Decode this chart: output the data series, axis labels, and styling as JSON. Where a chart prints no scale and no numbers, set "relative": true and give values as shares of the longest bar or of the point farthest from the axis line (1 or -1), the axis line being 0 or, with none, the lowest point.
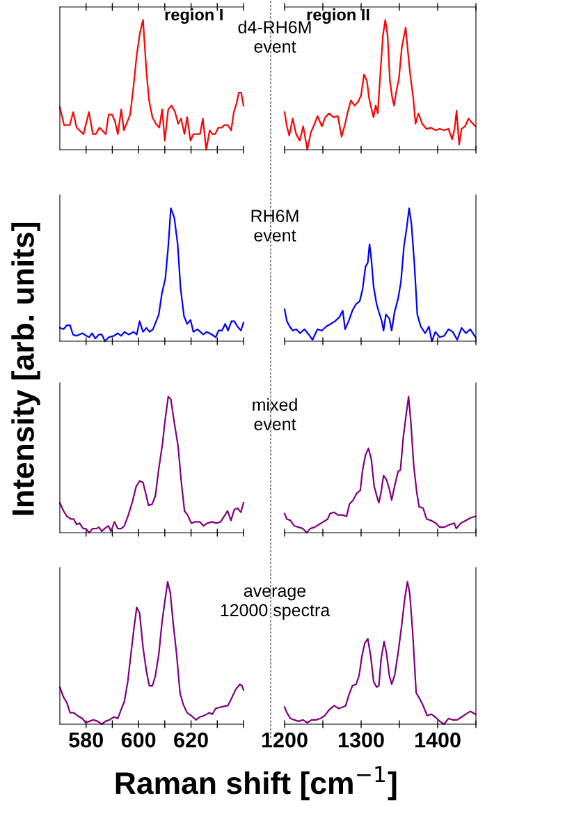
{
  "chart_data": [
    {
      "type": "line",
      "title": "region I",
      "ylabel": "Intensity [arb. units]",
      "annotations": [
        "d4-RH6M\nevent"
      ],
      "relative": true,
      "tick_labels": false,
      "xlim": [
        570,
        640
      ],
      "xticks": [
        {
          "value": 580,
          "label": null
        },
        {
          "value": 590,
          "label": null
        },
        {
          "value": 600,
          "label": null
        },
        {
          "value": 610,
          "label": null
        },
        {
          "value": 620,
          "label": null
        },
        {
          "value": 630,
          "label": null
        },
        {
          "value": 640,
          "label": null
        }
      ],
      "series": [
        {
          "color": "#ff0000",
          "x": [
            570,
            571.6,
            573.8,
            575.1,
            576.4,
            579,
            581.1,
            582.6,
            583.7,
            585.1,
            587.5,
            588.6,
            589.9,
            591,
            592.1,
            593.4,
            594.4,
            596.8,
            598.1,
            599.3,
            600.6,
            601.7,
            603,
            604,
            605.3,
            606.6,
            607.9,
            609,
            610,
            611.3,
            612.6,
            613.9,
            615.1,
            616.2,
            617.5,
            618.5,
            619.8,
            620.9,
            623.4,
            624.5,
            625.8,
            627.1,
            628.1,
            629.2,
            630.4,
            631.7,
            632.7,
            634,
            635.3,
            636.3,
            637.4,
            638.2,
            639.1,
            640
          ],
          "values": [
            0.33,
            0.19,
            0.19,
            0.29,
            0.17,
            0.12,
            0.29,
            0.12,
            0.12,
            0.17,
            0.12,
            0.27,
            0.27,
            0.22,
            0.12,
            0.31,
            0.15,
            0.27,
            0.49,
            0.73,
            0.91,
            1.0,
            0.6,
            0.38,
            0.25,
            0.2,
            0.17,
            0.31,
            0.07,
            0.31,
            0.34,
            0.29,
            0.2,
            0.24,
            0.12,
            0.25,
            0.07,
            0.12,
            0.12,
            0.24,
            0.0,
            0.15,
            0.12,
            0.12,
            0.17,
            0.17,
            0.19,
            0.19,
            0.15,
            0.29,
            0.36,
            0.44,
            0.44,
            0.34
          ]
        }
      ]
    },
    {
      "type": "line",
      "title": "region II",
      "relative": true,
      "tick_labels": false,
      "xlim": [
        1200,
        1450
      ],
      "xticks": [
        {
          "value": 1200,
          "label": null
        },
        {
          "value": 1250,
          "label": null
        },
        {
          "value": 1300,
          "label": null
        },
        {
          "value": 1350,
          "label": null
        },
        {
          "value": 1400,
          "label": null
        },
        {
          "value": 1450,
          "label": null
        }
      ],
      "series": [
        {
          "color": "#ff0000",
          "x": [
            1200,
            1203,
            1206.1,
            1210.6,
            1215.2,
            1219.8,
            1224.3,
            1229.7,
            1234.2,
            1239.2,
            1243,
            1248.7,
            1253.2,
            1258.2,
            1263.9,
            1269.6,
            1274.5,
            1279.1,
            1282.9,
            1286.7,
            1291.3,
            1296.2,
            1300,
            1303.8,
            1307.6,
            1310.3,
            1313.3,
            1316.3,
            1319,
            1321.7,
            1324.7,
            1328.5,
            1331.6,
            1334.6,
            1337.6,
            1340.7,
            1343,
            1346,
            1349.4,
            1353.2,
            1358.2,
            1361.2,
            1364.3,
            1368.1,
            1371.1,
            1374.9,
            1379.8,
            1385.6,
            1391.3,
            1397,
            1402.7,
            1408.4,
            1414.1,
            1419,
            1422.1,
            1424.7,
            1428.1,
            1431.2,
            1435.7,
            1440.3,
            1444.5,
            1449.4
          ],
          "values": [
            0.29,
            0.18,
            0.11,
            0.24,
            0.12,
            0.07,
            0.18,
            0.0,
            0.13,
            0.2,
            0.26,
            0.18,
            0.25,
            0.28,
            0.25,
            0.26,
            0.1,
            0.2,
            0.3,
            0.38,
            0.34,
            0.37,
            0.42,
            0.58,
            0.53,
            0.4,
            0.32,
            0.25,
            0.34,
            0.28,
            0.55,
            0.88,
            1.0,
            0.88,
            0.53,
            0.4,
            0.34,
            0.45,
            0.55,
            0.79,
            0.94,
            0.75,
            0.57,
            0.4,
            0.2,
            0.28,
            0.2,
            0.16,
            0.17,
            0.15,
            0.16,
            0.15,
            0.16,
            0.08,
            0.16,
            0.3,
            0.04,
            0.16,
            0.18,
            0.24,
            0.21,
            0.18
          ]
        }
      ]
    },
    {
      "type": "line",
      "annotations": [
        "RH6M\nevent"
      ],
      "relative": true,
      "tick_labels": false,
      "xlim": [
        570,
        640
      ],
      "xticks": [
        {
          "value": 580,
          "label": null
        },
        {
          "value": 590,
          "label": null
        },
        {
          "value": 600,
          "label": null
        },
        {
          "value": 610,
          "label": null
        },
        {
          "value": 620,
          "label": null
        },
        {
          "value": 630,
          "label": null
        },
        {
          "value": 640,
          "label": null
        }
      ],
      "series": [
        {
          "color": "#0000ff",
          "x": [
            570,
            571.4,
            572.7,
            573.9,
            575,
            576.4,
            578.6,
            580.1,
            581.2,
            582.3,
            583.5,
            584.9,
            586,
            587.2,
            588.7,
            590.6,
            592.1,
            593.4,
            594.6,
            596.3,
            598.1,
            599.3,
            600.4,
            601.7,
            603,
            604.2,
            605.5,
            607.7,
            608.9,
            610.2,
            611.3,
            612.3,
            613.6,
            614.9,
            616,
            617.3,
            618.5,
            619.8,
            620.9,
            622.4,
            624.7,
            626,
            627.1,
            629.4,
            630.5,
            631.8,
            633,
            634.1,
            635.4,
            636.5,
            637.7,
            639,
            640
          ],
          "values": [
            0.1,
            0.09,
            0.12,
            0.12,
            0.05,
            0.04,
            0.06,
            0.04,
            0.03,
            0.06,
            0.02,
            0.05,
            0.05,
            0.0,
            0.03,
            0.04,
            0.06,
            0.04,
            0.07,
            0.05,
            0.07,
            0.05,
            0.15,
            0.07,
            0.1,
            0.07,
            0.09,
            0.2,
            0.36,
            0.47,
            0.71,
            1.0,
            0.93,
            0.73,
            0.4,
            0.19,
            0.13,
            0.16,
            0.07,
            0.09,
            0.05,
            0.07,
            0.06,
            0.03,
            0.08,
            0.08,
            0.13,
            0.08,
            0.15,
            0.15,
            0.11,
            0.08,
            0.14
          ]
        }
      ]
    },
    {
      "type": "line",
      "relative": true,
      "tick_labels": false,
      "xlim": [
        1200,
        1450
      ],
      "xticks": [
        {
          "value": 1200,
          "label": null
        },
        {
          "value": 1250,
          "label": null
        },
        {
          "value": 1300,
          "label": null
        },
        {
          "value": 1350,
          "label": null
        },
        {
          "value": 1400,
          "label": null
        },
        {
          "value": 1450,
          "label": null
        }
      ],
      "series": [
        {
          "color": "#0000ff",
          "x": [
            1200,
            1203,
            1206.8,
            1210.6,
            1215.2,
            1220.2,
            1225.9,
            1231.6,
            1236.5,
            1243,
            1248.7,
            1254.4,
            1260.1,
            1265.8,
            1271.5,
            1276,
            1279.1,
            1283.7,
            1288.6,
            1293.5,
            1298.1,
            1301.9,
            1305.7,
            1308.7,
            1311,
            1313.3,
            1316.3,
            1320.2,
            1323.2,
            1327,
            1329.3,
            1332.3,
            1336.9,
            1339.9,
            1343.7,
            1348.3,
            1352.1,
            1355.9,
            1359.7,
            1362.7,
            1365.8,
            1369.6,
            1373.4,
            1378,
            1383.7,
            1388.6,
            1392.4,
            1397,
            1402.7,
            1408.4,
            1414.1,
            1419.8,
            1425.5,
            1431.2,
            1436.9,
            1442.6,
            1449.4
          ],
          "values": [
            0.24,
            0.15,
            0.11,
            0.08,
            0.09,
            0.06,
            0.09,
            0.05,
            0.01,
            0.09,
            0.08,
            0.11,
            0.13,
            0.15,
            0.18,
            0.23,
            0.09,
            0.15,
            0.23,
            0.28,
            0.3,
            0.39,
            0.56,
            0.59,
            0.73,
            0.62,
            0.41,
            0.28,
            0.22,
            0.15,
            0.08,
            0.2,
            0.17,
            0.08,
            0.22,
            0.32,
            0.45,
            0.71,
            0.86,
            1.0,
            0.88,
            0.58,
            0.2,
            0.11,
            0.06,
            0.11,
            0.0,
            0.07,
            0.03,
            0.04,
            0.09,
            0.07,
            0.01,
            0.1,
            0.06,
            0.09,
            0.03
          ]
        }
      ]
    },
    {
      "type": "line",
      "annotations": [
        "mixed\nevent"
      ],
      "relative": true,
      "tick_labels": false,
      "xlim": [
        570,
        640
      ],
      "xticks": [
        {
          "value": 580,
          "label": null
        },
        {
          "value": 590,
          "label": null
        },
        {
          "value": 600,
          "label": null
        },
        {
          "value": 610,
          "label": null
        },
        {
          "value": 620,
          "label": null
        },
        {
          "value": 630,
          "label": null
        },
        {
          "value": 640,
          "label": null
        }
      ],
      "series": [
        {
          "color": "#800080",
          "x": [
            570,
            571.4,
            572.7,
            574.3,
            575.3,
            576.4,
            577.5,
            578.9,
            579.9,
            581.2,
            582.5,
            583.9,
            584.9,
            586,
            587.1,
            588.5,
            589.5,
            590.8,
            592.1,
            593.4,
            594.6,
            596.1,
            597.7,
            599.1,
            600.4,
            601.7,
            602.7,
            603.8,
            605.2,
            606.4,
            607.7,
            609.1,
            610,
            611.3,
            612.3,
            613.6,
            615.1,
            616.2,
            617.5,
            618.7,
            620.1,
            621.7,
            623.3,
            624.7,
            626.2,
            628.1,
            629.7,
            631.3,
            632.6,
            633.9,
            635.2,
            636.5,
            637.7,
            639,
            640
          ],
          "values": [
            0.22,
            0.16,
            0.12,
            0.1,
            0.1,
            0.06,
            0.07,
            0.03,
            0.03,
            0.0,
            0.03,
            0.03,
            0.04,
            0.01,
            0.03,
            0.05,
            0.01,
            0.08,
            0.03,
            0.03,
            0.05,
            0.13,
            0.23,
            0.34,
            0.38,
            0.37,
            0.29,
            0.2,
            0.21,
            0.27,
            0.47,
            0.65,
            0.81,
            1.0,
            0.98,
            0.81,
            0.63,
            0.39,
            0.16,
            0.13,
            0.07,
            0.08,
            0.08,
            0.05,
            0.07,
            0.08,
            0.07,
            0.08,
            0.12,
            0.16,
            0.09,
            0.17,
            0.18,
            0.15,
            0.22
          ]
        }
      ]
    },
    {
      "type": "line",
      "relative": true,
      "tick_labels": false,
      "xlim": [
        1200,
        1450
      ],
      "xticks": [
        {
          "value": 1200,
          "label": null
        },
        {
          "value": 1250,
          "label": null
        },
        {
          "value": 1300,
          "label": null
        },
        {
          "value": 1350,
          "label": null
        },
        {
          "value": 1400,
          "label": null
        },
        {
          "value": 1450,
          "label": null
        }
      ],
      "series": [
        {
          "color": "#800080",
          "x": [
            1200,
            1203,
            1207.6,
            1212.5,
            1218.3,
            1224,
            1228.9,
            1233.5,
            1239.2,
            1244.9,
            1250.6,
            1256.3,
            1259.3,
            1264.6,
            1269.6,
            1275.3,
            1281,
            1284.8,
            1289.7,
            1294.3,
            1298.9,
            1301.9,
            1305.7,
            1309.5,
            1313.3,
            1317.1,
            1320.9,
            1323.2,
            1326.2,
            1329.3,
            1333.1,
            1336.9,
            1339.9,
            1343.7,
            1348.3,
            1351.3,
            1355.1,
            1358.9,
            1362,
            1365,
            1368.8,
            1372.6,
            1375.7,
            1381,
            1385.6,
            1391.3,
            1397.7,
            1402.7,
            1408.4,
            1416,
            1421.7,
            1424.3,
            1430.4,
            1436.9,
            1443.3,
            1449.4
          ],
          "values": [
            0.14,
            0.1,
            0.09,
            0.05,
            0.04,
            0.03,
            0.0,
            0.03,
            0.04,
            0.06,
            0.08,
            0.1,
            0.14,
            0.15,
            0.13,
            0.13,
            0.12,
            0.21,
            0.24,
            0.29,
            0.31,
            0.46,
            0.57,
            0.62,
            0.54,
            0.34,
            0.26,
            0.22,
            0.3,
            0.42,
            0.39,
            0.32,
            0.24,
            0.34,
            0.45,
            0.46,
            0.7,
            0.87,
            1.0,
            0.81,
            0.49,
            0.3,
            0.19,
            0.18,
            0.1,
            0.09,
            0.07,
            0.04,
            0.04,
            0.06,
            0.07,
            0.03,
            0.07,
            0.09,
            0.11,
            0.12
          ]
        }
      ]
    },
    {
      "type": "line",
      "xlabel": "Raman shift [cm$^{−1}$]",
      "annotations": [
        "average\n12000 spectra"
      ],
      "relative": true,
      "tick_labels": "x",
      "xlim": [
        570,
        640
      ],
      "xticks": [
        580,
        {
          "value": 590,
          "label": null
        },
        600,
        {
          "value": 610,
          "label": null
        },
        620,
        {
          "value": 630,
          "label": null
        },
        {
          "value": 640,
          "label": null
        }
      ],
      "series": [
        {
          "color": "#800080",
          "x": [
            570,
            571.4,
            572.7,
            573.9,
            575.3,
            576.7,
            578.5,
            579.9,
            581.2,
            582.8,
            584.4,
            586,
            587.4,
            588.9,
            590.6,
            592.1,
            593.1,
            594.6,
            595.9,
            597.2,
            598.3,
            599.3,
            600.4,
            601.7,
            603,
            604.1,
            605.3,
            606.4,
            607.7,
            608.9,
            610,
            611.1,
            612.1,
            613.2,
            614.5,
            615.8,
            617,
            618.5,
            620.1,
            621.9,
            623.3,
            624.9,
            626.9,
            628.1,
            629.4,
            631.3,
            634,
            635.4,
            636.9,
            638.6,
            639.4,
            640
          ],
          "values": [
            0.26,
            0.19,
            0.15,
            0.08,
            0.08,
            0.06,
            0.04,
            0.01,
            0.02,
            0.03,
            0.02,
            0.0,
            0.02,
            0.03,
            0.05,
            0.04,
            0.09,
            0.16,
            0.3,
            0.51,
            0.68,
            0.82,
            0.78,
            0.54,
            0.37,
            0.27,
            0.27,
            0.34,
            0.49,
            0.71,
            0.86,
            1.0,
            0.92,
            0.71,
            0.49,
            0.22,
            0.14,
            0.08,
            0.06,
            0.03,
            0.05,
            0.06,
            0.08,
            0.07,
            0.11,
            0.12,
            0.13,
            0.18,
            0.24,
            0.28,
            0.27,
            0.24
          ]
        }
      ]
    },
    {
      "type": "line",
      "relative": true,
      "tick_labels": "x",
      "xlim": [
        1200,
        1450
      ],
      "xticks": [
        1200,
        {
          "value": 1250,
          "label": null
        },
        1300,
        {
          "value": 1350,
          "label": null
        },
        1400,
        {
          "value": 1450,
          "label": null
        }
      ],
      "series": [
        {
          "color": "#800080",
          "x": [
            1200,
            1203,
            1207.6,
            1212.5,
            1218.3,
            1224,
            1229.7,
            1235.4,
            1241.1,
            1246.8,
            1252.5,
            1258.2,
            1264.6,
            1270.7,
            1276,
            1279.8,
            1283.7,
            1288.6,
            1293.5,
            1297.3,
            1301.1,
            1304.9,
            1308.7,
            1312.5,
            1316.3,
            1320.2,
            1323.2,
            1326.2,
            1330,
            1333.1,
            1336.9,
            1339.9,
            1343.7,
            1348.3,
            1352.9,
            1356.7,
            1360.5,
            1363.5,
            1367.3,
            1371.9,
            1376.4,
            1381,
            1386.3,
            1391.6,
            1397,
            1402.7,
            1408.4,
            1414.1,
            1419.8,
            1425.5,
            1431.2,
            1436.9,
            1442.6,
            1449.4
          ],
          "values": [
            0.12,
            0.08,
            0.04,
            0.03,
            0.02,
            0.03,
            0.01,
            0.03,
            0.03,
            0.04,
            0.06,
            0.1,
            0.13,
            0.11,
            0.12,
            0.13,
            0.2,
            0.27,
            0.28,
            0.34,
            0.48,
            0.57,
            0.6,
            0.48,
            0.3,
            0.26,
            0.27,
            0.46,
            0.58,
            0.5,
            0.34,
            0.28,
            0.34,
            0.5,
            0.69,
            0.87,
            1.0,
            0.92,
            0.65,
            0.22,
            0.18,
            0.13,
            0.06,
            0.07,
            0.05,
            0.02,
            0.0,
            0.04,
            0.03,
            0.03,
            0.05,
            0.07,
            0.09,
            0.07
          ]
        }
      ]
    }
  ]
}
